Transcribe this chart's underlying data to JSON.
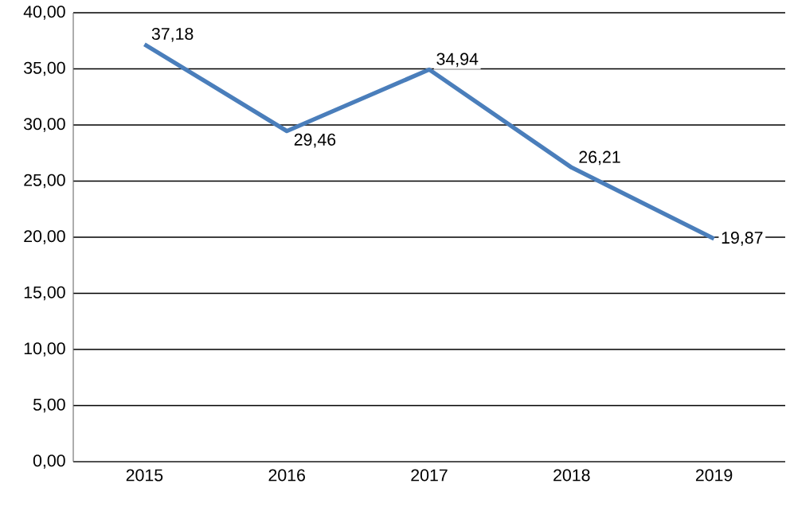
{
  "chart_data": {
    "type": "line",
    "categories": [
      "2015",
      "2016",
      "2017",
      "2018",
      "2019"
    ],
    "series": [
      {
        "color": "#4a7ebb",
        "values": [
          37.18,
          29.46,
          34.94,
          26.21,
          19.87
        ],
        "value_labels": [
          "37,18",
          "29,46",
          "34,94",
          "26,21",
          "19,87"
        ]
      }
    ],
    "ylim": [
      0,
      40
    ],
    "yticks": [
      {
        "value": 0,
        "label": "0,00"
      },
      {
        "value": 5,
        "label": "5,00"
      },
      {
        "value": 10,
        "label": "10,00"
      },
      {
        "value": 15,
        "label": "15,00"
      },
      {
        "value": 20,
        "label": "20,00"
      },
      {
        "value": 25,
        "label": "25,00"
      },
      {
        "value": 30,
        "label": "30,00"
      },
      {
        "value": 35,
        "label": "35,00"
      },
      {
        "value": 40,
        "label": "40,00"
      }
    ],
    "grid": "y",
    "marker": "none",
    "line_style": "solid"
  }
}
